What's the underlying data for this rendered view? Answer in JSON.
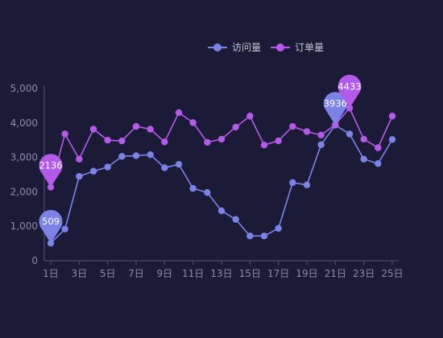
{
  "chart_data": {
    "type": "line",
    "title": "",
    "xlabel": "",
    "ylabel": "",
    "ylim": [
      0,
      5000
    ],
    "y_ticks": [
      "0",
      "1,000",
      "2,000",
      "3,000",
      "4,000",
      "5,000"
    ],
    "y_tick_values": [
      0,
      1000,
      2000,
      3000,
      4000,
      5000
    ],
    "categories": [
      "1日",
      "2日",
      "3日",
      "4日",
      "5日",
      "6日",
      "7日",
      "8日",
      "9日",
      "10日",
      "11日",
      "12日",
      "13日",
      "14日",
      "15日",
      "16日",
      "17日",
      "18日",
      "19日",
      "20日",
      "21日",
      "22日",
      "23日",
      "24日",
      "25日"
    ],
    "x_tick_labels": [
      "1日",
      "3日",
      "5日",
      "7日",
      "9日",
      "11日",
      "13日",
      "15日",
      "17日",
      "19日",
      "21日",
      "23日",
      "25日"
    ],
    "grid": false,
    "legend_position": "top-center",
    "series": [
      {
        "name": "访问量",
        "color": "#7b83e6",
        "values": [
          509,
          920,
          2450,
          2600,
          2720,
          3030,
          3050,
          3080,
          2700,
          2800,
          2100,
          1980,
          1450,
          1200,
          720,
          720,
          940,
          2270,
          2200,
          3370,
          3936,
          3680,
          2950,
          2820,
          3520
        ],
        "markers": [
          {
            "label": "509",
            "index": 0
          },
          {
            "label": "3936",
            "index": 20
          }
        ]
      },
      {
        "name": "订单量",
        "color": "#b35ae8",
        "values": [
          2136,
          3680,
          2950,
          3820,
          3500,
          3480,
          3900,
          3820,
          3450,
          4300,
          4010,
          3440,
          3530,
          3880,
          4200,
          3360,
          3480,
          3900,
          3750,
          3650,
          3950,
          4433,
          3530,
          3280,
          4200
        ],
        "markers": [
          {
            "label": "2136",
            "index": 0
          },
          {
            "label": "4433",
            "index": 21
          }
        ]
      }
    ]
  },
  "colors": {
    "background": "#1b1b38",
    "axis": "#54547a",
    "tick_text": "#8c8ca8",
    "legend_text": "#c4c4d4"
  }
}
